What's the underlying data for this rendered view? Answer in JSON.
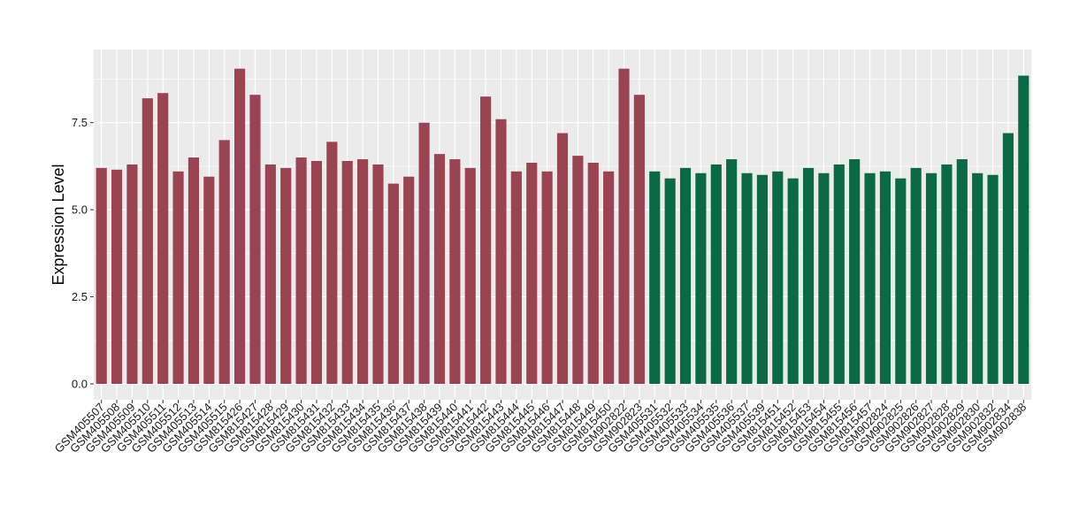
{
  "chart_data": {
    "type": "bar",
    "ylabel": "Expression Level",
    "xlabel": "",
    "ylim": [
      0,
      9.6
    ],
    "yticks": [
      "0.0",
      "2.5",
      "5.0",
      "7.5"
    ],
    "ytick_values": [
      0,
      2.5,
      5.0,
      7.5
    ],
    "grid": true,
    "colors": {
      "group_a": "#9B4451",
      "group_b": "#0A6A46",
      "panel_bg": "#EBEBEB",
      "grid": "#FFFFFF"
    },
    "categories": [
      "GSM405507",
      "GSM405508",
      "GSM405509",
      "GSM405510",
      "GSM405511",
      "GSM405512",
      "GSM405513",
      "GSM405514",
      "GSM405515",
      "GSM815426",
      "GSM815427",
      "GSM815428",
      "GSM815429",
      "GSM815430",
      "GSM815431",
      "GSM815432",
      "GSM815433",
      "GSM815434",
      "GSM815435",
      "GSM815436",
      "GSM815437",
      "GSM815438",
      "GSM815439",
      "GSM815440",
      "GSM815441",
      "GSM815442",
      "GSM815443",
      "GSM815444",
      "GSM815445",
      "GSM815446",
      "GSM815447",
      "GSM815448",
      "GSM815449",
      "GSM815450",
      "GSM902822",
      "GSM902823",
      "GSM405531",
      "GSM405532",
      "GSM405533",
      "GSM405534",
      "GSM405535",
      "GSM405536",
      "GSM405537",
      "GSM405539",
      "GSM815451",
      "GSM815452",
      "GSM815453",
      "GSM815454",
      "GSM815455",
      "GSM815456",
      "GSM815457",
      "GSM902824",
      "GSM902825",
      "GSM902826",
      "GSM902827",
      "GSM902828",
      "GSM902829",
      "GSM902830",
      "GSM902832",
      "GSM902834",
      "GSM902838"
    ],
    "values": [
      6.2,
      6.15,
      6.3,
      8.2,
      8.35,
      6.1,
      6.5,
      5.95,
      7.0,
      9.05,
      8.3,
      6.3,
      6.2,
      6.5,
      6.4,
      6.95,
      6.4,
      6.45,
      6.3,
      5.75,
      5.95,
      7.5,
      6.6,
      6.45,
      6.2,
      8.25,
      7.6,
      6.1,
      6.35,
      6.1,
      7.2,
      6.55,
      6.35,
      6.1,
      9.05,
      8.3,
      6.1,
      5.9,
      6.2,
      6.05,
      6.3,
      6.45,
      6.05,
      6.0,
      6.1,
      5.9,
      6.2,
      6.05,
      6.3,
      6.45,
      6.05,
      6.1,
      5.9,
      6.2,
      6.05,
      6.3,
      6.45,
      6.05,
      6.0,
      7.2,
      8.85
    ],
    "groups": [
      "a",
      "a",
      "a",
      "a",
      "a",
      "a",
      "a",
      "a",
      "a",
      "a",
      "a",
      "a",
      "a",
      "a",
      "a",
      "a",
      "a",
      "a",
      "a",
      "a",
      "a",
      "a",
      "a",
      "a",
      "a",
      "a",
      "a",
      "a",
      "a",
      "a",
      "a",
      "a",
      "a",
      "a",
      "a",
      "a",
      "b",
      "b",
      "b",
      "b",
      "b",
      "b",
      "b",
      "b",
      "b",
      "b",
      "b",
      "b",
      "b",
      "b",
      "b",
      "b",
      "b",
      "b",
      "b",
      "b",
      "b",
      "b",
      "b",
      "b",
      "b"
    ]
  }
}
